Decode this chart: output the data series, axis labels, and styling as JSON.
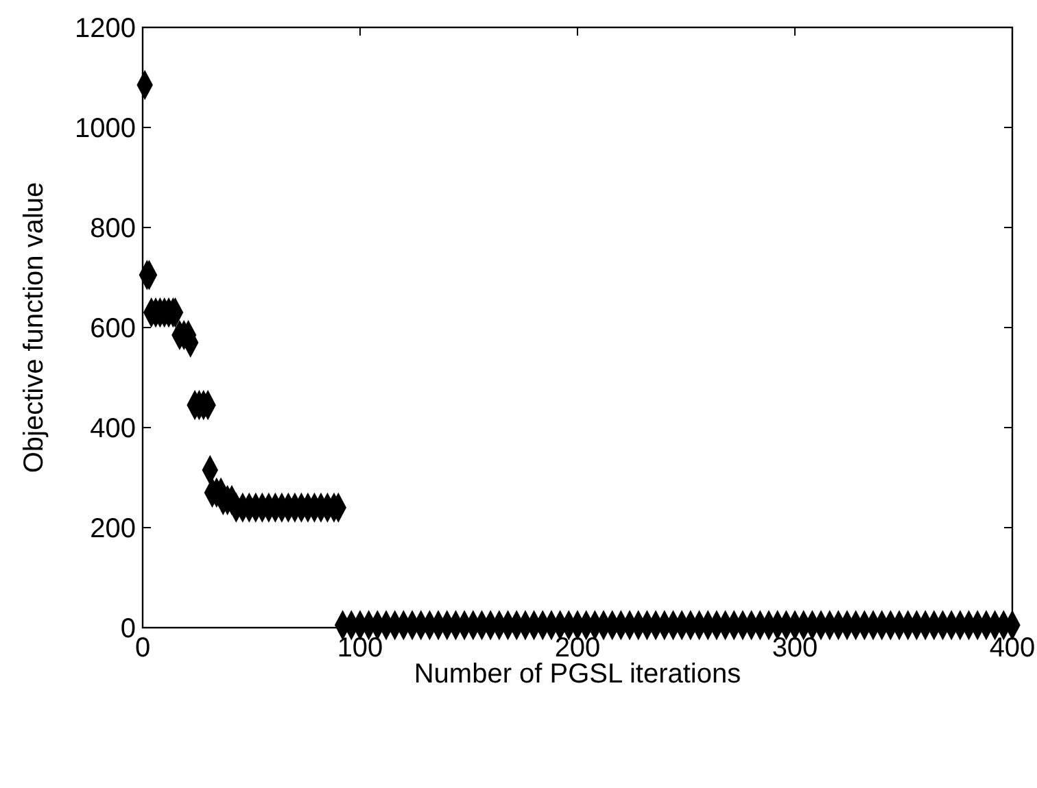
{
  "chart_data": {
    "type": "scatter",
    "xlabel": "Number of PGSL iterations",
    "ylabel": "Objective function value",
    "xlim": [
      0,
      400
    ],
    "ylim": [
      0,
      1200
    ],
    "xticks": [
      0,
      100,
      200,
      300,
      400
    ],
    "yticks": [
      0,
      200,
      400,
      600,
      800,
      1000,
      1200
    ],
    "grid": false,
    "marker": "diamond",
    "series": [
      {
        "color": "#000000",
        "x": [
          1,
          2,
          3,
          4,
          6,
          8,
          10,
          12,
          14,
          15,
          17,
          19,
          21,
          22,
          24,
          26,
          28,
          30,
          31,
          32,
          34,
          36,
          37,
          39,
          41,
          43,
          46,
          49,
          52,
          55,
          58,
          61,
          64,
          67,
          70,
          73,
          76,
          79,
          82,
          85,
          88,
          90,
          92,
          96,
          100,
          104,
          108,
          112,
          116,
          120,
          124,
          128,
          132,
          136,
          140,
          144,
          148,
          152,
          156,
          160,
          164,
          168,
          172,
          176,
          180,
          184,
          188,
          192,
          196,
          200,
          204,
          208,
          212,
          216,
          220,
          224,
          228,
          232,
          236,
          240,
          244,
          248,
          252,
          256,
          260,
          264,
          268,
          272,
          276,
          280,
          284,
          288,
          292,
          296,
          300,
          304,
          308,
          312,
          316,
          320,
          324,
          328,
          332,
          336,
          340,
          344,
          348,
          352,
          356,
          360,
          364,
          368,
          372,
          376,
          380,
          384,
          388,
          392,
          396,
          400
        ],
        "values": [
          1085,
          705,
          705,
          630,
          630,
          630,
          630,
          630,
          630,
          630,
          585,
          585,
          585,
          570,
          445,
          445,
          445,
          445,
          315,
          270,
          270,
          270,
          255,
          255,
          255,
          240,
          240,
          240,
          240,
          240,
          240,
          240,
          240,
          240,
          240,
          240,
          240,
          240,
          240,
          240,
          240,
          240,
          5,
          5,
          5,
          5,
          5,
          5,
          5,
          5,
          5,
          5,
          5,
          5,
          5,
          5,
          5,
          5,
          5,
          5,
          5,
          5,
          5,
          5,
          5,
          5,
          5,
          5,
          5,
          5,
          5,
          5,
          5,
          5,
          5,
          5,
          5,
          5,
          5,
          5,
          5,
          5,
          5,
          5,
          5,
          5,
          5,
          5,
          5,
          5,
          5,
          5,
          5,
          5,
          5,
          5,
          5,
          5,
          5,
          5,
          5,
          5,
          5,
          5,
          5,
          5,
          5,
          5,
          5,
          5,
          5,
          5,
          5,
          5,
          5,
          5,
          5,
          5,
          5,
          5
        ]
      }
    ]
  }
}
